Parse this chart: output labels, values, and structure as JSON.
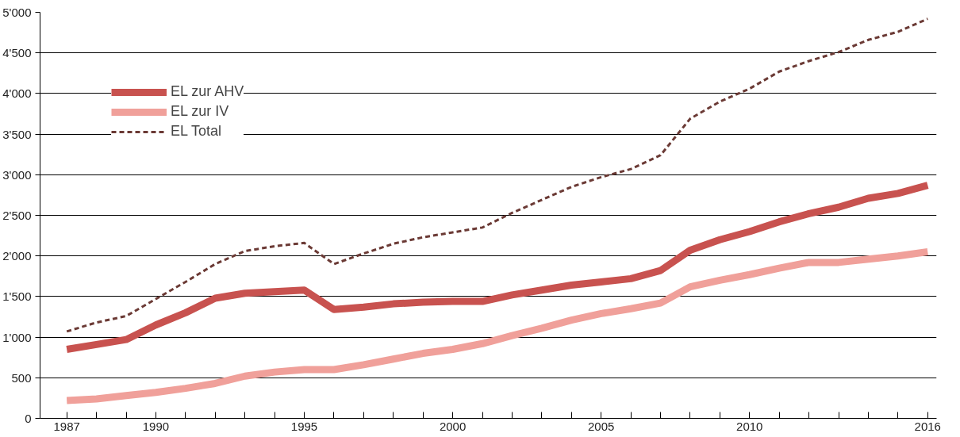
{
  "chart_data": {
    "type": "line",
    "x": [
      1987,
      1988,
      1989,
      1990,
      1991,
      1992,
      1993,
      1994,
      1995,
      1996,
      1997,
      1998,
      1999,
      2000,
      2001,
      2002,
      2003,
      2004,
      2005,
      2006,
      2007,
      2008,
      2009,
      2010,
      2011,
      2012,
      2013,
      2014,
      2015,
      2016
    ],
    "series": [
      {
        "name": "EL zur AHV",
        "color": "#c8524f",
        "line_style": "solid",
        "values": [
          850,
          910,
          970,
          1150,
          1300,
          1480,
          1540,
          1560,
          1580,
          1340,
          1370,
          1410,
          1430,
          1440,
          1440,
          1520,
          1580,
          1640,
          1680,
          1720,
          1820,
          2070,
          2200,
          2300,
          2420,
          2520,
          2600,
          2710,
          2770,
          2870
        ]
      },
      {
        "name": "EL zur IV",
        "color": "#f0a09a",
        "line_style": "solid",
        "values": [
          220,
          240,
          280,
          320,
          370,
          430,
          520,
          570,
          600,
          600,
          660,
          730,
          800,
          850,
          920,
          1020,
          1110,
          1210,
          1290,
          1350,
          1420,
          1620,
          1700,
          1770,
          1850,
          1920,
          1920,
          1960,
          2000,
          2050
        ]
      },
      {
        "name": "EL Total",
        "color": "#6b3a35",
        "line_style": "dashed",
        "values": [
          1070,
          1180,
          1260,
          1470,
          1680,
          1900,
          2060,
          2120,
          2160,
          1900,
          2030,
          2150,
          2230,
          2290,
          2350,
          2530,
          2690,
          2850,
          2970,
          3070,
          3240,
          3690,
          3900,
          4060,
          4270,
          4400,
          4510,
          4660,
          4760,
          4920
        ]
      }
    ],
    "xlim": [
      1986.1,
      2016.3
    ],
    "xticks": [
      1987,
      {
        "value": 1988,
        "label": null
      },
      {
        "value": 1989,
        "label": null
      },
      1990,
      {
        "value": 1991,
        "label": null
      },
      {
        "value": 1992,
        "label": null
      },
      {
        "value": 1993,
        "label": null
      },
      {
        "value": 1994,
        "label": null
      },
      1995,
      {
        "value": 1996,
        "label": null
      },
      {
        "value": 1997,
        "label": null
      },
      {
        "value": 1998,
        "label": null
      },
      {
        "value": 1999,
        "label": null
      },
      2000,
      {
        "value": 2001,
        "label": null
      },
      {
        "value": 2002,
        "label": null
      },
      {
        "value": 2003,
        "label": null
      },
      {
        "value": 2004,
        "label": null
      },
      2005,
      {
        "value": 2006,
        "label": null
      },
      {
        "value": 2007,
        "label": null
      },
      {
        "value": 2008,
        "label": null
      },
      {
        "value": 2009,
        "label": null
      },
      2010,
      {
        "value": 2011,
        "label": null
      },
      {
        "value": 2012,
        "label": null
      },
      {
        "value": 2013,
        "label": null
      },
      {
        "value": 2014,
        "label": null
      },
      {
        "value": 2015,
        "label": null
      },
      2016
    ],
    "ylim": [
      0,
      5000
    ],
    "yticks": [
      0,
      500,
      {
        "value": 1000,
        "label": "1'000"
      },
      {
        "value": 1500,
        "label": "1'500"
      },
      {
        "value": 2000,
        "label": "2'000"
      },
      {
        "value": 2500,
        "label": "2'500"
      },
      {
        "value": 3000,
        "label": "3'000"
      },
      {
        "value": 3500,
        "label": "3'500"
      },
      {
        "value": 4000,
        "label": "4'000"
      },
      {
        "value": 4500,
        "label": "4'500"
      },
      {
        "value": 5000,
        "label": "5'000"
      }
    ],
    "grid": "y",
    "legend": "top left",
    "marker": "none"
  }
}
